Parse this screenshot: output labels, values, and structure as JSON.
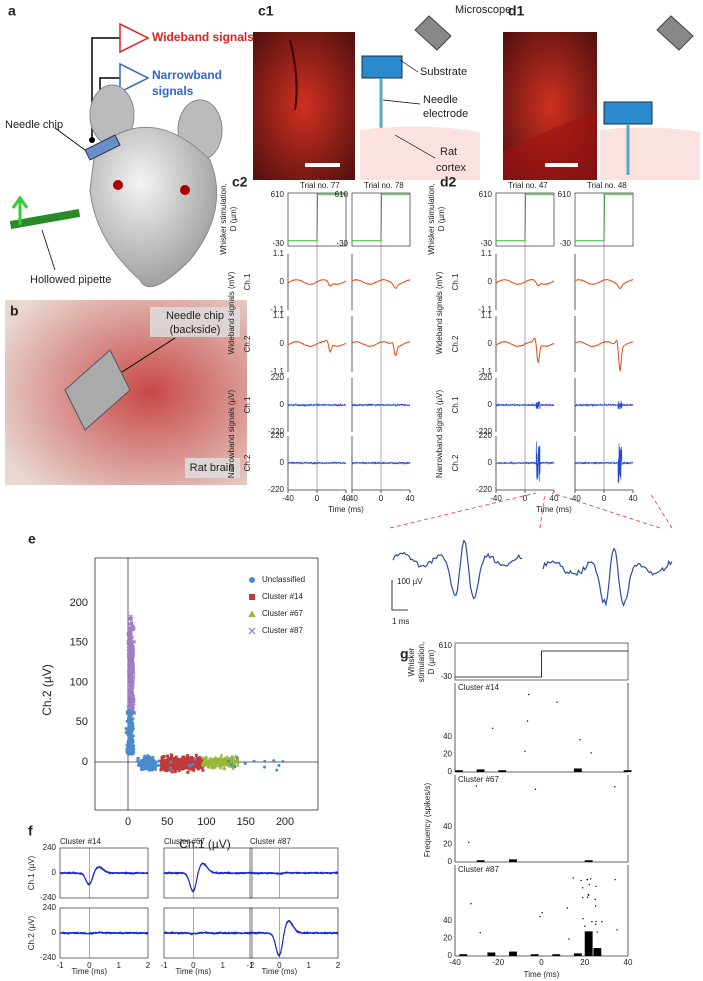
{
  "panels": {
    "a": {
      "label": "a",
      "wideband": "Wideband signals",
      "narrowband_1": "Narrowband",
      "narrowband_2": "signals",
      "needle_chip": "Needle chip",
      "pipette": "Hollowed pipette"
    },
    "b": {
      "label": "b",
      "chip_1": "Needle chip",
      "chip_2": "(backside)",
      "brain": "Rat brain"
    },
    "c1": {
      "label": "c1",
      "microscope": "Microscope",
      "substrate": "Substrate",
      "needle_1": "Needle",
      "needle_2": "electrode",
      "cortex_1": "Rat",
      "cortex_2": "cortex"
    },
    "d1": {
      "label": "d1"
    },
    "c2": {
      "label": "c2",
      "trials": [
        "Trial no. 77",
        "Trial no. 78"
      ]
    },
    "d2": {
      "label": "d2",
      "trials": [
        "Trial no. 47",
        "Trial no. 48"
      ]
    },
    "traces": {
      "stim_label_1": "Whisker stimulation,",
      "stim_label_2": "D (µm)",
      "wide_label": "Wideband signals  (mV)",
      "narrow_label": "Narrowband signals  (µV)",
      "channels": [
        "Ch.1",
        "Ch.2"
      ],
      "stim_ticks": [
        "610",
        "-30"
      ],
      "wide_ticks": [
        "1.1",
        "0",
        "-1.1"
      ],
      "narrow_ticks": [
        "220",
        "0",
        "-220"
      ],
      "xticks": [
        "-40",
        "0",
        "40"
      ],
      "xlabel": "Time (ms)",
      "scale_amp": "100 µV",
      "scale_time": "1 ms"
    },
    "e": {
      "label": "e",
      "xlabel": "Ch.1 (µV)",
      "ylabel": "Ch.2 (µV)",
      "xticks": [
        "0",
        "50",
        "100",
        "150",
        "200"
      ],
      "yticks": [
        "0",
        "50",
        "100",
        "150",
        "200"
      ],
      "legend": [
        "Unclassified",
        "Cluster #14",
        "Cluster #67",
        "Cluster #87"
      ]
    },
    "f": {
      "label": "f",
      "clusters": [
        "Cluster #14",
        "Cluster #67",
        "Cluster #87"
      ],
      "ylabels": [
        "Ch.1 (µV)",
        "Ch.2 (µV)"
      ],
      "yticks": [
        "240",
        "0",
        "-240"
      ],
      "xticks": [
        "-1",
        "0",
        "1",
        "2"
      ],
      "xlabel": "Time (ms)"
    },
    "g": {
      "label": "g",
      "stim_1": "Whisker",
      "stim_2": "stimulation,",
      "stim_3": "D (µm)",
      "stim_ticks": [
        "610",
        "-30"
      ],
      "clusters": [
        "Cluster #14",
        "Cluster #67",
        "Cluster #87"
      ],
      "ylabel": "Frequency (spikes/s)",
      "yticks": [
        "40",
        "20",
        "0"
      ],
      "xticks": [
        "-40",
        "-20",
        "0",
        "20",
        "40"
      ],
      "xlabel": "Time (ms)"
    }
  }
}
